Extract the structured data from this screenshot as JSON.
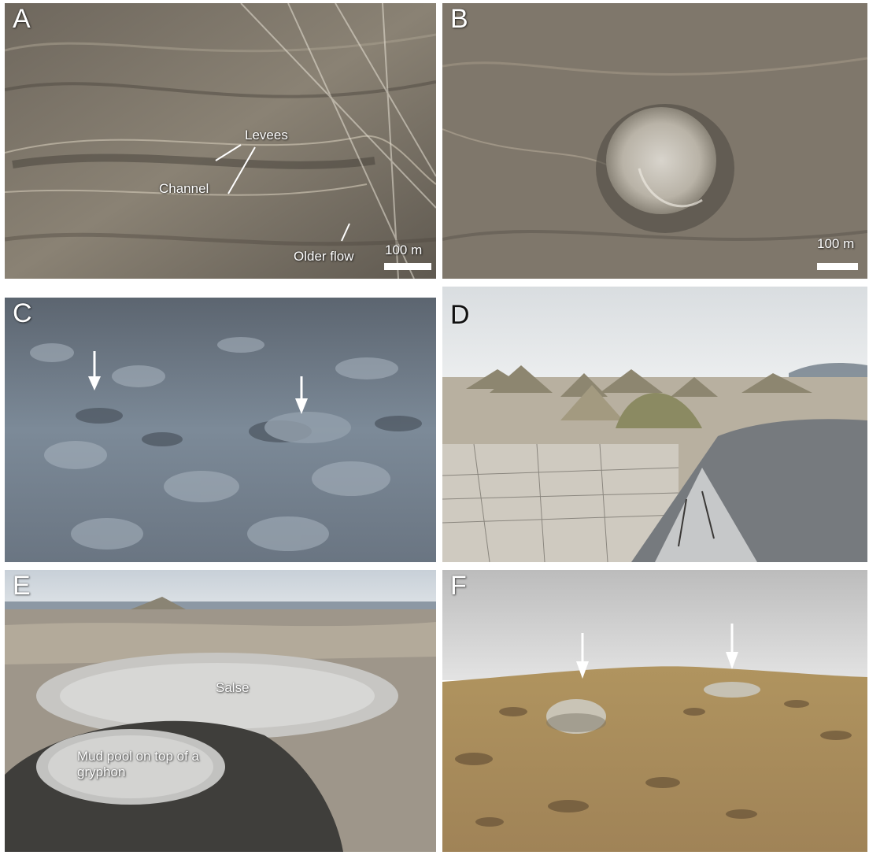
{
  "panels": {
    "a": {
      "label": "A",
      "annotations": {
        "levees": "Levees",
        "channel": "Channel",
        "older_flow": "Older flow"
      },
      "scale": "100 m"
    },
    "b": {
      "label": "B",
      "scale": "100 m"
    },
    "c": {
      "label": "C",
      "arrows": 2
    },
    "d": {
      "label": "D"
    },
    "e": {
      "label": "E",
      "annotations": {
        "salse": "Salse",
        "mud_pool": "Mud pool on top of a gryphon"
      }
    },
    "f": {
      "label": "F",
      "arrows": 2
    }
  },
  "colors": {
    "aerial_tone": "#7d7568",
    "mud_blue_grey": "#6f7f8f",
    "sky": "#dfe3e6",
    "steppe": "#a98a5a"
  }
}
